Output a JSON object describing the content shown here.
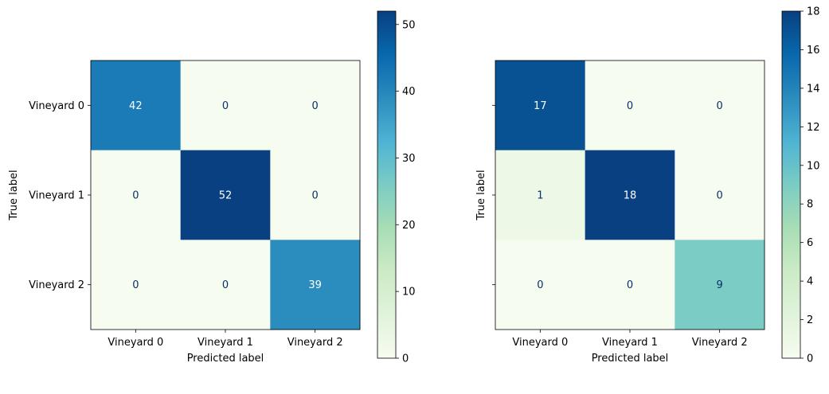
{
  "chart_data": [
    {
      "type": "heatmap",
      "title": "",
      "xlabel": "Predicted label",
      "ylabel": "True label",
      "x_categories": [
        "Vineyard 0",
        "Vineyard 1",
        "Vineyard 2"
      ],
      "y_categories": [
        "Vineyard 0",
        "Vineyard 1",
        "Vineyard 2"
      ],
      "values": [
        [
          42,
          0,
          0
        ],
        [
          0,
          52,
          0
        ],
        [
          0,
          0,
          39
        ]
      ],
      "colormap": "GnBu",
      "color_range": [
        0,
        52
      ],
      "colorbar_ticks": [
        0,
        10,
        20,
        30,
        40,
        50
      ],
      "show_row_tick_labels": true
    },
    {
      "type": "heatmap",
      "title": "",
      "xlabel": "Predicted label",
      "ylabel": "True label",
      "x_categories": [
        "Vineyard 0",
        "Vineyard 1",
        "Vineyard 2"
      ],
      "y_categories": [
        "Vineyard 0",
        "Vineyard 1",
        "Vineyard 2"
      ],
      "values": [
        [
          17,
          0,
          0
        ],
        [
          1,
          18,
          0
        ],
        [
          0,
          0,
          9
        ]
      ],
      "colormap": "GnBu",
      "color_range": [
        0,
        18
      ],
      "colorbar_ticks": [
        0,
        2,
        4,
        6,
        8,
        10,
        12,
        14,
        16,
        18
      ],
      "show_row_tick_labels": false
    }
  ],
  "colors": {
    "text_dark": "#08306b",
    "text_light": "#ffffff",
    "axis": "#000000"
  }
}
